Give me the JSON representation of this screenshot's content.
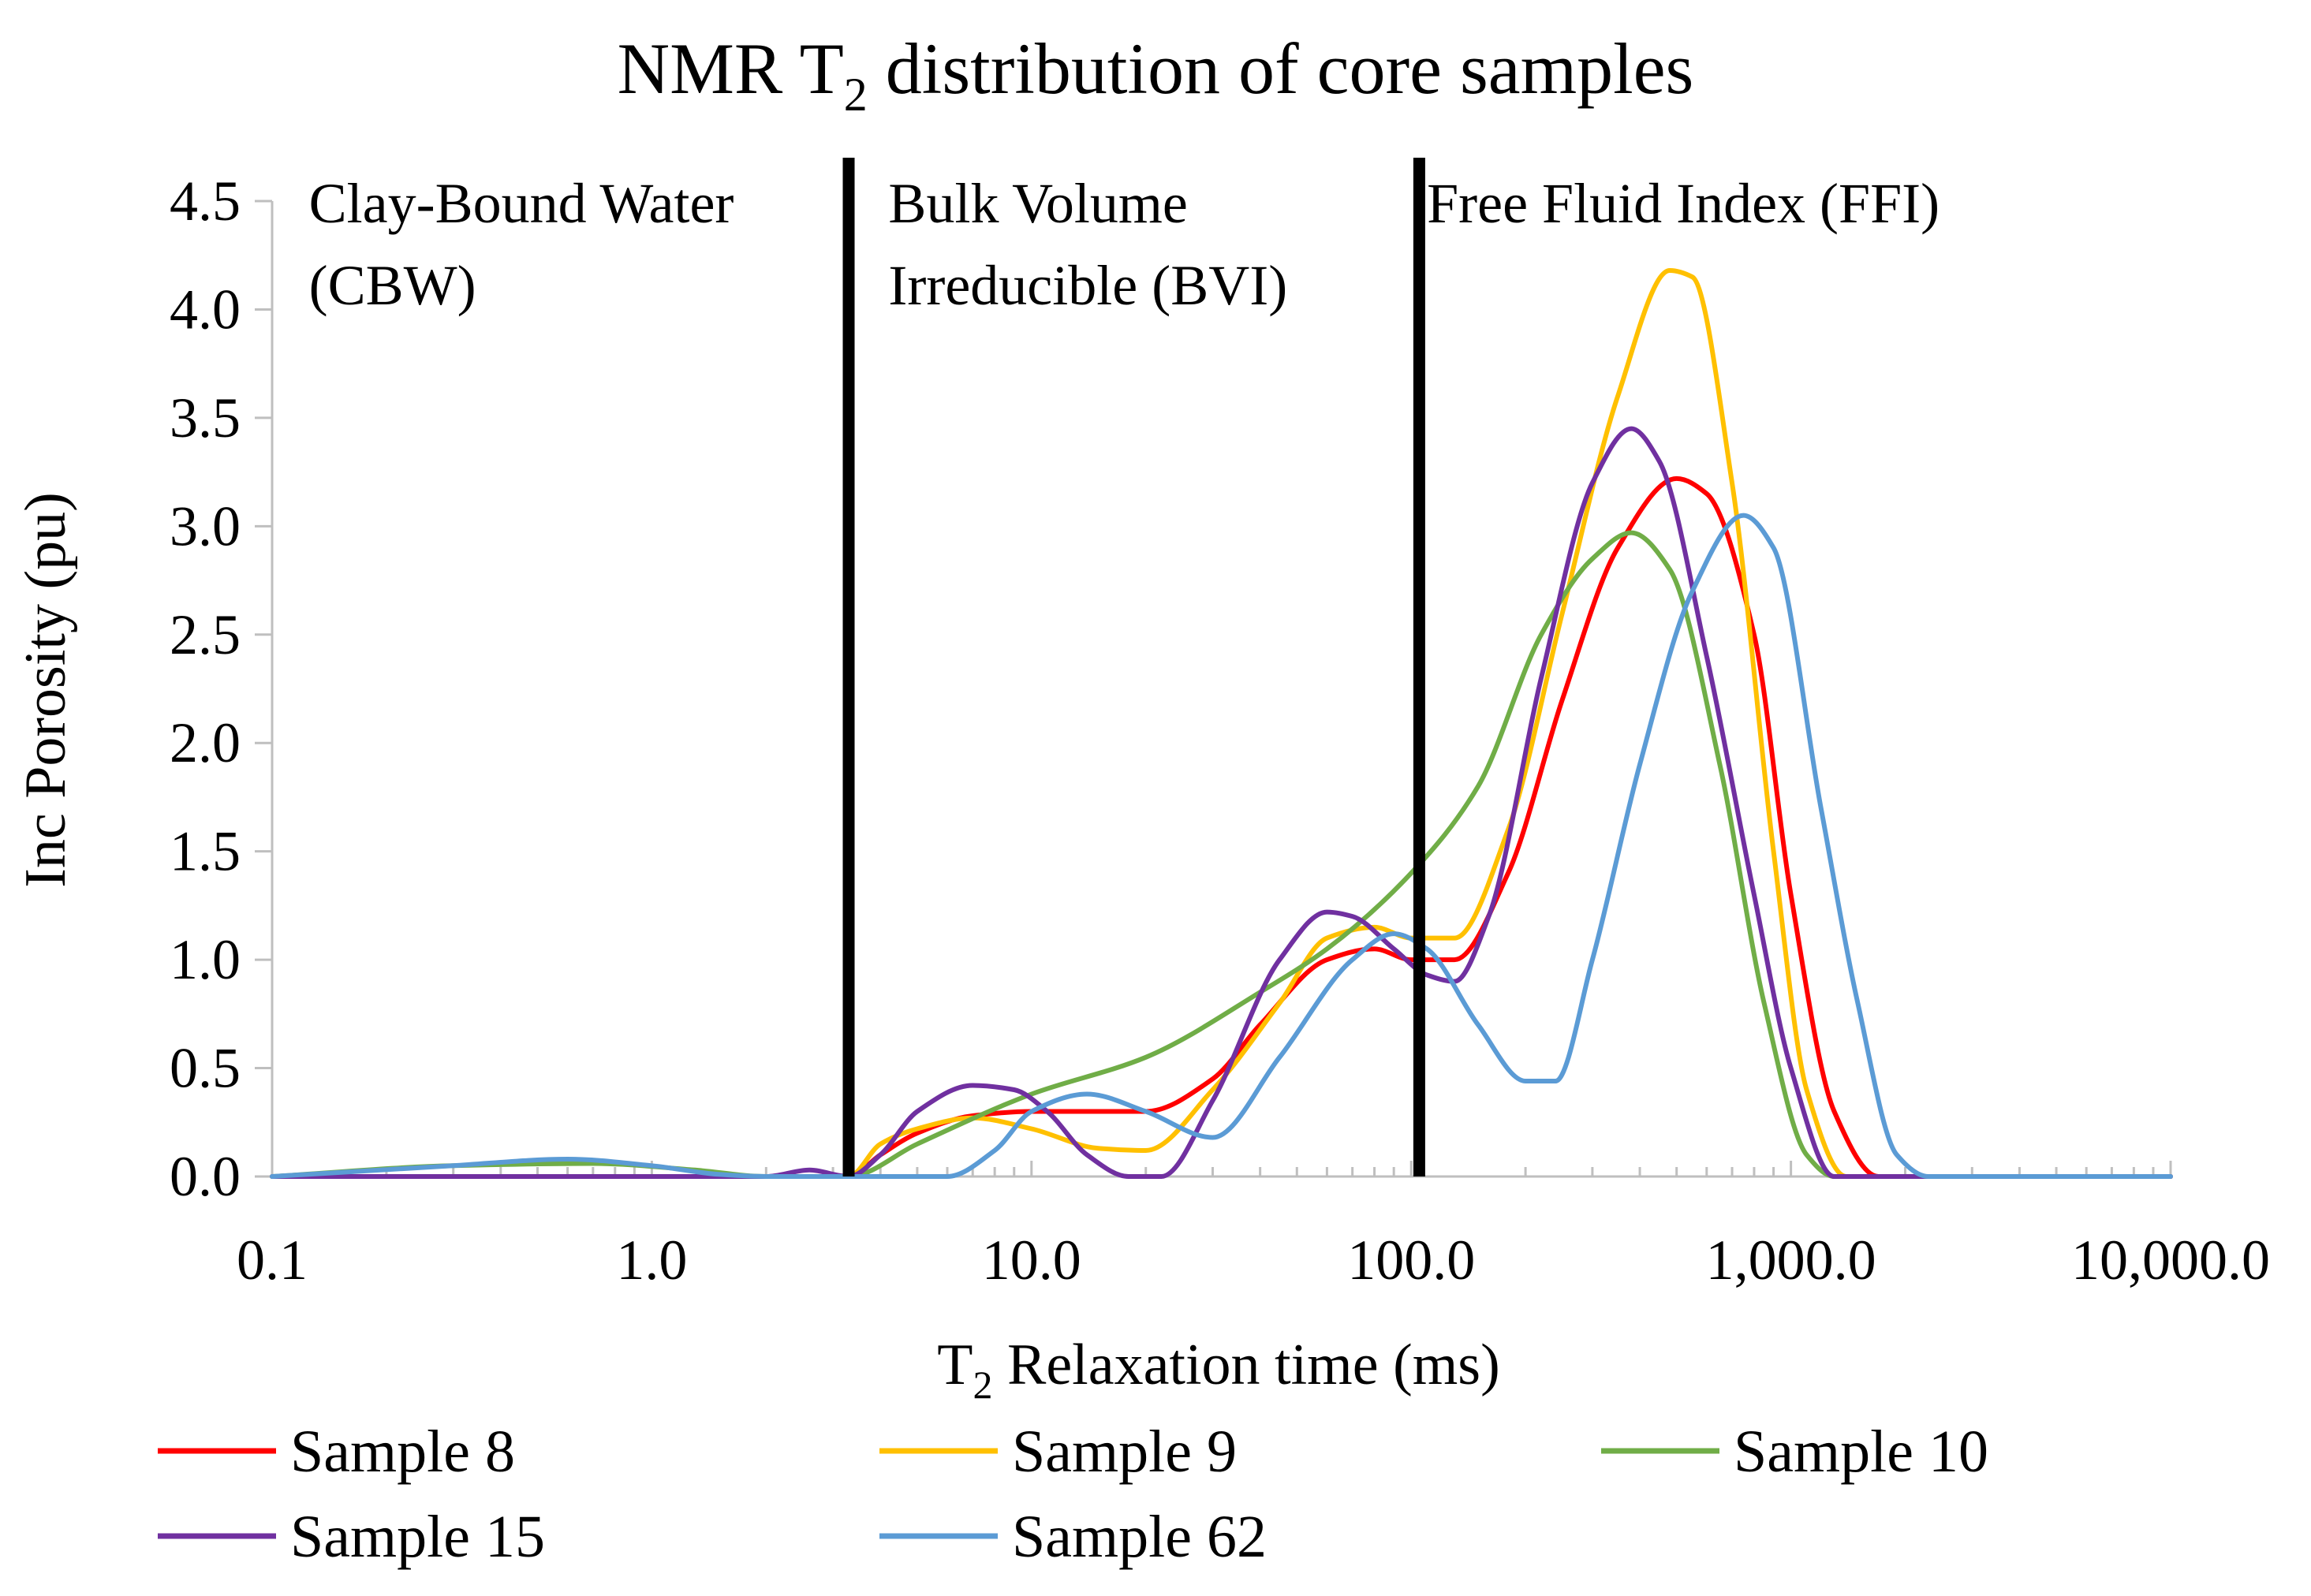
{
  "chart_data": {
    "type": "line",
    "title_main": "NMR T",
    "title_sub": "2",
    "title_rest": " distribution of core samples",
    "xlabel_main": "T",
    "xlabel_sub": "2",
    "xlabel_rest": " Relaxation time (ms)",
    "ylabel": "Inc Porosity (pu)",
    "x_scale": "log",
    "xlim": [
      0.1,
      10000
    ],
    "ylim": [
      0,
      4.5
    ],
    "x_ticks": [
      {
        "value": 0.1,
        "label": "0.1"
      },
      {
        "value": 1,
        "label": "1.0"
      },
      {
        "value": 10,
        "label": "10.0"
      },
      {
        "value": 100,
        "label": "100.0"
      },
      {
        "value": 1000,
        "label": "1,000.0"
      },
      {
        "value": 10000,
        "label": "10,000.0"
      }
    ],
    "y_ticks": [
      {
        "value": 0,
        "label": "0.0"
      },
      {
        "value": 0.5,
        "label": "0.5"
      },
      {
        "value": 1,
        "label": "1.0"
      },
      {
        "value": 1.5,
        "label": "1.5"
      },
      {
        "value": 2,
        "label": "2.0"
      },
      {
        "value": 2.5,
        "label": "2.5"
      },
      {
        "value": 3,
        "label": "3.0"
      },
      {
        "value": 3.5,
        "label": "3.5"
      },
      {
        "value": 4,
        "label": "4.0"
      },
      {
        "value": 4.5,
        "label": "4.5"
      }
    ],
    "cutoffs": [
      {
        "name": "cbw-bvi-cutoff",
        "x": 3.3
      },
      {
        "name": "bvi-ffi-cutoff",
        "x": 105
      }
    ],
    "zones": [
      {
        "name": "cbw",
        "lines": [
          "Clay-Bound Water",
          "(CBW)"
        ],
        "anchor_x": 0.125
      },
      {
        "name": "bvi",
        "lines": [
          "Bulk Volume",
          "Irreducible (BVI)"
        ],
        "anchor_x": 4.2
      },
      {
        "name": "ffi",
        "lines": [
          "Free Fluid Index (FFI)"
        ],
        "anchor_x": 110
      }
    ],
    "legend_position": "bottom",
    "series": [
      {
        "name": "Sample 8",
        "color": "#FF0000",
        "points": [
          [
            0.1,
            0
          ],
          [
            2,
            0
          ],
          [
            3.3,
            0
          ],
          [
            4,
            0.1
          ],
          [
            5,
            0.2
          ],
          [
            7,
            0.28
          ],
          [
            10,
            0.3
          ],
          [
            15,
            0.3
          ],
          [
            20,
            0.3
          ],
          [
            30,
            0.45
          ],
          [
            40,
            0.7
          ],
          [
            60,
            1.0
          ],
          [
            80,
            1.05
          ],
          [
            100,
            1.0
          ],
          [
            130,
            1.0
          ],
          [
            180,
            1.4
          ],
          [
            250,
            2.2
          ],
          [
            350,
            2.9
          ],
          [
            500,
            3.22
          ],
          [
            600,
            3.15
          ],
          [
            800,
            2.5
          ],
          [
            1000,
            1.3
          ],
          [
            1300,
            0.3
          ],
          [
            1700,
            0
          ],
          [
            10000,
            0
          ]
        ]
      },
      {
        "name": "Sample 9",
        "color": "#FFC000",
        "points": [
          [
            0.1,
            0
          ],
          [
            2,
            0
          ],
          [
            3.3,
            0
          ],
          [
            4,
            0.15
          ],
          [
            5,
            0.22
          ],
          [
            7,
            0.27
          ],
          [
            10,
            0.22
          ],
          [
            15,
            0.13
          ],
          [
            20,
            0.12
          ],
          [
            30,
            0.4
          ],
          [
            45,
            0.8
          ],
          [
            60,
            1.1
          ],
          [
            80,
            1.15
          ],
          [
            100,
            1.1
          ],
          [
            130,
            1.1
          ],
          [
            180,
            1.6
          ],
          [
            250,
            2.6
          ],
          [
            350,
            3.6
          ],
          [
            480,
            4.18
          ],
          [
            550,
            4.15
          ],
          [
            700,
            3.2
          ],
          [
            900,
            1.5
          ],
          [
            1100,
            0.4
          ],
          [
            1400,
            0
          ],
          [
            10000,
            0
          ]
        ]
      },
      {
        "name": "Sample 10",
        "color": "#70AD47",
        "points": [
          [
            0.1,
            0
          ],
          [
            0.3,
            0.05
          ],
          [
            0.7,
            0.06
          ],
          [
            1.3,
            0.03
          ],
          [
            2,
            0
          ],
          [
            3.3,
            0
          ],
          [
            5,
            0.15
          ],
          [
            10,
            0.38
          ],
          [
            20,
            0.55
          ],
          [
            40,
            0.85
          ],
          [
            60,
            1.05
          ],
          [
            100,
            1.4
          ],
          [
            150,
            1.8
          ],
          [
            220,
            2.5
          ],
          [
            300,
            2.85
          ],
          [
            380,
            2.97
          ],
          [
            480,
            2.8
          ],
          [
            650,
            1.9
          ],
          [
            850,
            0.8
          ],
          [
            1100,
            0.1
          ],
          [
            1300,
            0
          ],
          [
            10000,
            0
          ]
        ]
      },
      {
        "name": "Sample 15",
        "color": "#7030A0",
        "points": [
          [
            0.1,
            0
          ],
          [
            2,
            0
          ],
          [
            2.6,
            0.03
          ],
          [
            3.3,
            0
          ],
          [
            4,
            0.1
          ],
          [
            5,
            0.3
          ],
          [
            7,
            0.42
          ],
          [
            9,
            0.4
          ],
          [
            11,
            0.3
          ],
          [
            14,
            0.1
          ],
          [
            18,
            0
          ],
          [
            22,
            0
          ],
          [
            30,
            0.35
          ],
          [
            45,
            1.0
          ],
          [
            60,
            1.22
          ],
          [
            70,
            1.2
          ],
          [
            90,
            1.05
          ],
          [
            110,
            0.93
          ],
          [
            130,
            0.9
          ],
          [
            160,
            1.2
          ],
          [
            220,
            2.3
          ],
          [
            300,
            3.2
          ],
          [
            380,
            3.45
          ],
          [
            450,
            3.3
          ],
          [
            600,
            2.4
          ],
          [
            800,
            1.3
          ],
          [
            1000,
            0.5
          ],
          [
            1300,
            0
          ],
          [
            10000,
            0
          ]
        ]
      },
      {
        "name": "Sample 62",
        "color": "#5B9BD5",
        "points": [
          [
            0.1,
            0
          ],
          [
            0.3,
            0.05
          ],
          [
            0.6,
            0.08
          ],
          [
            1,
            0.05
          ],
          [
            1.5,
            0.01
          ],
          [
            2,
            0
          ],
          [
            6,
            0
          ],
          [
            8,
            0.12
          ],
          [
            10,
            0.3
          ],
          [
            14,
            0.38
          ],
          [
            20,
            0.3
          ],
          [
            30,
            0.18
          ],
          [
            45,
            0.55
          ],
          [
            70,
            1.0
          ],
          [
            90,
            1.12
          ],
          [
            110,
            1.05
          ],
          [
            150,
            0.7
          ],
          [
            200,
            0.44
          ],
          [
            240,
            0.44
          ],
          [
            300,
            1.0
          ],
          [
            400,
            1.9
          ],
          [
            550,
            2.7
          ],
          [
            750,
            3.05
          ],
          [
            900,
            2.9
          ],
          [
            1200,
            1.7
          ],
          [
            1500,
            0.8
          ],
          [
            1900,
            0.1
          ],
          [
            2300,
            0
          ],
          [
            10000,
            0
          ]
        ]
      }
    ]
  }
}
